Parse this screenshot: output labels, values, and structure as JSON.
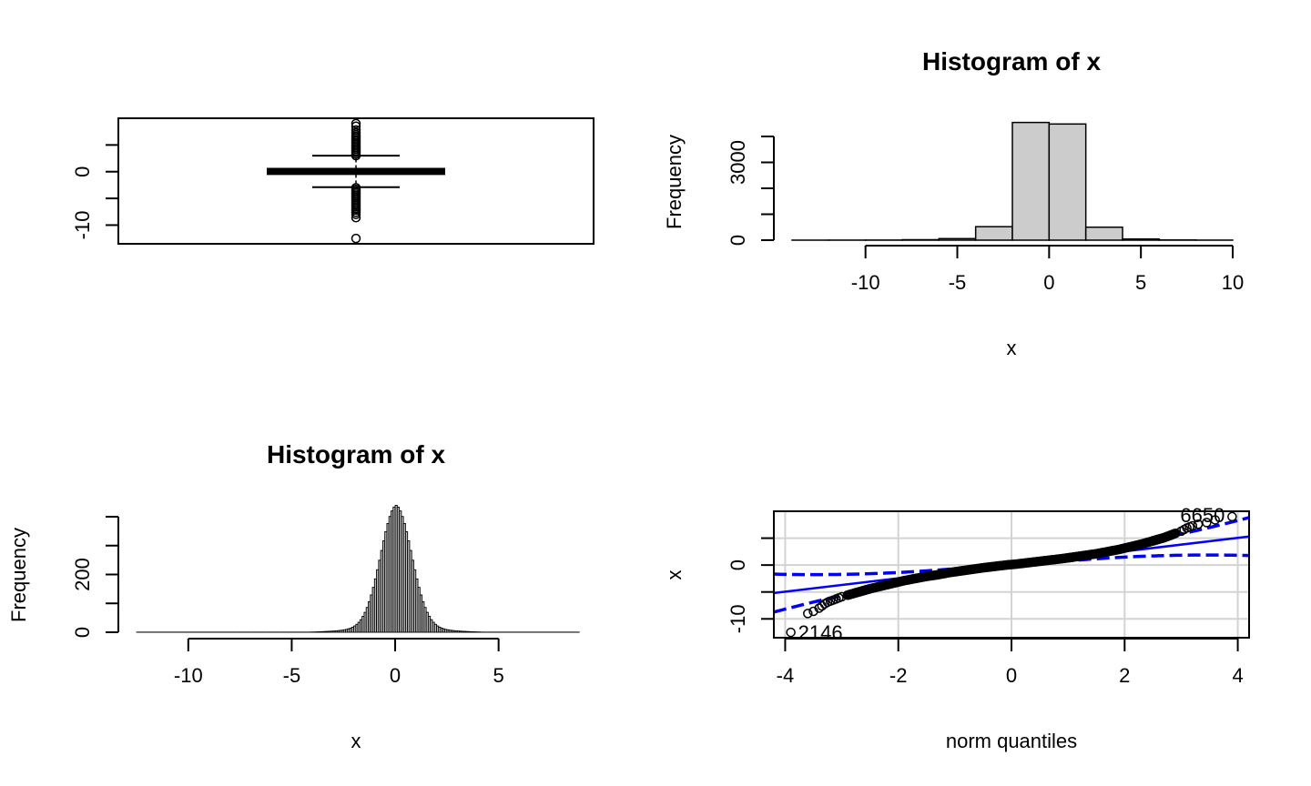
{
  "chart_data": [
    {
      "type": "box",
      "title": "",
      "xlabel": "",
      "ylabel": "",
      "ylim": [
        -13.5,
        10
      ],
      "y_ticks": [
        -10,
        -5,
        0,
        5
      ],
      "y_tick_labels": [
        "-10",
        "",
        "0",
        ""
      ],
      "box": {
        "min_whisker": -2.9,
        "q1": -0.45,
        "median": 0.0,
        "q3": 0.55,
        "max_whisker": 3.0
      },
      "outliers_high": [
        3.0,
        3.3,
        3.6,
        3.9,
        4.2,
        4.5,
        4.8,
        5.1,
        5.4,
        5.7,
        6.0,
        6.3,
        6.6,
        6.9,
        7.3,
        7.8,
        8.5,
        9.0
      ],
      "outliers_low": [
        -3.0,
        -3.3,
        -3.6,
        -3.9,
        -4.2,
        -4.5,
        -4.8,
        -5.1,
        -5.4,
        -5.7,
        -6.0,
        -6.3,
        -6.6,
        -6.9,
        -7.2,
        -7.6,
        -8.0,
        -8.6,
        -12.5
      ]
    },
    {
      "type": "bar",
      "title": "Histogram of x",
      "xlabel": "x",
      "ylabel": "Frequency",
      "xlim": [
        -14,
        10
      ],
      "ylim": [
        0,
        4500
      ],
      "x_ticks": [
        -10,
        -5,
        0,
        5,
        10
      ],
      "y_ticks": [
        0,
        1000,
        2000,
        3000,
        4000
      ],
      "y_tick_labels": [
        "0",
        "",
        "",
        "3000",
        ""
      ],
      "bin_edges": [
        -14,
        -12,
        -10,
        -8,
        -6,
        -4,
        -2,
        0,
        2,
        4,
        6,
        8,
        10
      ],
      "values": [
        1,
        2,
        4,
        18,
        60,
        520,
        4540,
        4480,
        500,
        45,
        8,
        2
      ]
    },
    {
      "type": "bar",
      "title": "Histogram of x",
      "xlabel": "x",
      "ylabel": "Frequency",
      "xlim": [
        -12.5,
        8.8
      ],
      "ylim": [
        0,
        400
      ],
      "x_ticks": [
        -10,
        -5,
        0,
        5
      ],
      "y_ticks": [
        0,
        100,
        200,
        300,
        400
      ],
      "y_tick_labels": [
        "0",
        "",
        "200",
        "",
        ""
      ],
      "bin_width": 0.1,
      "distribution": {
        "center": 0.05,
        "peak": 395,
        "sigma": 0.75,
        "tail_weight": 0.12,
        "tail_scale": 1.6
      }
    },
    {
      "type": "scatter",
      "title": "",
      "xlabel": "norm quantiles",
      "ylabel": "x",
      "xlim": [
        -4.2,
        4.2
      ],
      "ylim": [
        -13.5,
        10
      ],
      "x_ticks": [
        -4,
        -2,
        0,
        2,
        4
      ],
      "y_ticks": [
        -10,
        -5,
        0,
        5
      ],
      "y_tick_labels": [
        "-10",
        "",
        "0",
        ""
      ],
      "grid": true,
      "reference_line": {
        "intercept": 0.05,
        "slope": 1.25,
        "color": "#0000ff"
      },
      "annotations": [
        {
          "text": "6650",
          "x": 3.9,
          "y": 9.0
        },
        {
          "text": "2146",
          "x": -3.9,
          "y": -12.5
        }
      ],
      "points": [
        [
          -3.9,
          -12.5
        ],
        [
          -3.6,
          -9.0
        ],
        [
          -3.5,
          -8.6
        ],
        [
          -3.4,
          -8.0
        ],
        [
          -3.35,
          -7.6
        ],
        [
          -3.3,
          -7.2
        ],
        [
          -3.25,
          -6.9
        ],
        [
          -3.2,
          -6.7
        ],
        [
          -3.15,
          -6.5
        ],
        [
          -3.1,
          -6.3
        ],
        [
          -3.05,
          -6.1
        ],
        [
          -3.0,
          -5.9
        ],
        [
          -2.9,
          -5.6
        ],
        [
          -2.8,
          -5.3
        ],
        [
          -2.7,
          -5.0
        ],
        [
          -2.6,
          -4.7
        ],
        [
          -2.5,
          -4.4
        ],
        [
          -2.3,
          -3.9
        ],
        [
          -2.1,
          -3.4
        ],
        [
          -1.9,
          -2.9
        ],
        [
          -1.7,
          -2.5
        ],
        [
          -1.5,
          -2.1
        ],
        [
          -1.3,
          -1.8
        ],
        [
          -1.1,
          -1.4
        ],
        [
          -0.9,
          -1.1
        ],
        [
          -0.7,
          -0.8
        ],
        [
          -0.5,
          -0.5
        ],
        [
          -0.3,
          -0.25
        ],
        [
          -0.1,
          0.0
        ],
        [
          0.1,
          0.2
        ],
        [
          0.3,
          0.45
        ],
        [
          0.5,
          0.7
        ],
        [
          0.7,
          0.95
        ],
        [
          0.9,
          1.2
        ],
        [
          1.1,
          1.5
        ],
        [
          1.3,
          1.8
        ],
        [
          1.5,
          2.1
        ],
        [
          1.7,
          2.5
        ],
        [
          1.9,
          2.9
        ],
        [
          2.1,
          3.4
        ],
        [
          2.3,
          3.9
        ],
        [
          2.5,
          4.5
        ],
        [
          2.6,
          4.8
        ],
        [
          2.7,
          5.1
        ],
        [
          2.8,
          5.5
        ],
        [
          2.9,
          5.9
        ],
        [
          3.0,
          6.3
        ],
        [
          3.05,
          6.6
        ],
        [
          3.1,
          6.9
        ],
        [
          3.15,
          7.1
        ],
        [
          3.2,
          7.3
        ],
        [
          3.3,
          7.6
        ],
        [
          3.45,
          7.9
        ],
        [
          3.6,
          8.4
        ],
        [
          3.9,
          9.0
        ]
      ]
    }
  ]
}
